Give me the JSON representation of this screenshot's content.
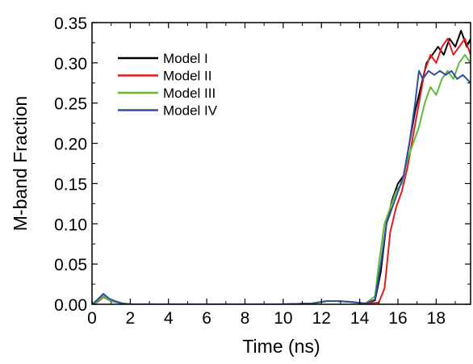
{
  "chart_data": {
    "type": "line",
    "title": "",
    "xlabel": "Time (ns)",
    "ylabel": "M-band Fraction",
    "xlim": [
      0,
      19.8
    ],
    "ylim": [
      0,
      0.35
    ],
    "grid": false,
    "legend_position": "top-left",
    "x_ticks": [
      0,
      2,
      4,
      6,
      8,
      10,
      12,
      14,
      16,
      18
    ],
    "y_ticks": [
      "0.00",
      "0.05",
      "0.10",
      "0.15",
      "0.20",
      "0.25",
      "0.30",
      "0.35"
    ],
    "series": [
      {
        "name": "Model I",
        "color": "#000000",
        "points": [
          [
            0,
            0
          ],
          [
            0.3,
            0.004
          ],
          [
            0.6,
            0.01
          ],
          [
            0.9,
            0.005
          ],
          [
            1.2,
            0.003
          ],
          [
            1.6,
            0.001
          ],
          [
            2,
            0
          ],
          [
            6,
            0
          ],
          [
            10,
            0
          ],
          [
            11.5,
            0.001
          ],
          [
            12.3,
            0.004
          ],
          [
            12.8,
            0.004
          ],
          [
            13.5,
            0.003
          ],
          [
            14.3,
            0.001
          ],
          [
            14.8,
            0.005
          ],
          [
            15.1,
            0.04
          ],
          [
            15.4,
            0.1
          ],
          [
            15.7,
            0.13
          ],
          [
            16.0,
            0.15
          ],
          [
            16.3,
            0.16
          ],
          [
            16.6,
            0.2
          ],
          [
            16.9,
            0.24
          ],
          [
            17.2,
            0.27
          ],
          [
            17.5,
            0.3
          ],
          [
            17.8,
            0.31
          ],
          [
            18.1,
            0.32
          ],
          [
            18.4,
            0.31
          ],
          [
            18.7,
            0.33
          ],
          [
            19.0,
            0.32
          ],
          [
            19.3,
            0.34
          ],
          [
            19.6,
            0.32
          ],
          [
            19.8,
            0.33
          ]
        ]
      },
      {
        "name": "Model II",
        "color": "#e41a1c",
        "points": [
          [
            0,
            0
          ],
          [
            0.3,
            0.003
          ],
          [
            0.6,
            0.009
          ],
          [
            0.9,
            0.005
          ],
          [
            1.2,
            0.003
          ],
          [
            1.6,
            0.001
          ],
          [
            2,
            0
          ],
          [
            6,
            0
          ],
          [
            10,
            0
          ],
          [
            11.5,
            0.001
          ],
          [
            12.3,
            0.004
          ],
          [
            12.8,
            0.004
          ],
          [
            13.5,
            0.003
          ],
          [
            14.3,
            0.001
          ],
          [
            15.0,
            0.002
          ],
          [
            15.3,
            0.02
          ],
          [
            15.6,
            0.09
          ],
          [
            15.9,
            0.12
          ],
          [
            16.2,
            0.14
          ],
          [
            16.5,
            0.17
          ],
          [
            16.8,
            0.21
          ],
          [
            17.1,
            0.25
          ],
          [
            17.4,
            0.29
          ],
          [
            17.7,
            0.31
          ],
          [
            18.0,
            0.3
          ],
          [
            18.3,
            0.32
          ],
          [
            18.6,
            0.33
          ],
          [
            18.9,
            0.31
          ],
          [
            19.2,
            0.32
          ],
          [
            19.5,
            0.33
          ],
          [
            19.8,
            0.31
          ]
        ]
      },
      {
        "name": "Model III",
        "color": "#5dbb36",
        "points": [
          [
            0,
            0
          ],
          [
            0.3,
            0.004
          ],
          [
            0.6,
            0.01
          ],
          [
            0.9,
            0.005
          ],
          [
            1.2,
            0.003
          ],
          [
            1.6,
            0.001
          ],
          [
            2,
            0
          ],
          [
            6,
            0
          ],
          [
            10,
            0
          ],
          [
            11.5,
            0.001
          ],
          [
            12.3,
            0.004
          ],
          [
            12.8,
            0.004
          ],
          [
            13.5,
            0.003
          ],
          [
            14.3,
            0.001
          ],
          [
            14.8,
            0.01
          ],
          [
            15.0,
            0.05
          ],
          [
            15.3,
            0.1
          ],
          [
            15.6,
            0.12
          ],
          [
            15.9,
            0.14
          ],
          [
            16.2,
            0.15
          ],
          [
            16.5,
            0.18
          ],
          [
            16.8,
            0.2
          ],
          [
            17.1,
            0.22
          ],
          [
            17.4,
            0.25
          ],
          [
            17.7,
            0.27
          ],
          [
            18.0,
            0.26
          ],
          [
            18.3,
            0.28
          ],
          [
            18.6,
            0.29
          ],
          [
            18.9,
            0.28
          ],
          [
            19.2,
            0.3
          ],
          [
            19.5,
            0.31
          ],
          [
            19.8,
            0.3
          ]
        ]
      },
      {
        "name": "Model IV",
        "color": "#2e4fa3",
        "points": [
          [
            0,
            0
          ],
          [
            0.3,
            0.006
          ],
          [
            0.6,
            0.013
          ],
          [
            0.9,
            0.007
          ],
          [
            1.2,
            0.004
          ],
          [
            1.6,
            0.001
          ],
          [
            2,
            0
          ],
          [
            6,
            0
          ],
          [
            10,
            0
          ],
          [
            11.5,
            0.001
          ],
          [
            12.3,
            0.004
          ],
          [
            12.8,
            0.004
          ],
          [
            13.5,
            0.003
          ],
          [
            14.3,
            0.001
          ],
          [
            14.8,
            0.006
          ],
          [
            15.1,
            0.05
          ],
          [
            15.4,
            0.1
          ],
          [
            15.7,
            0.12
          ],
          [
            16.0,
            0.14
          ],
          [
            16.3,
            0.16
          ],
          [
            16.6,
            0.2
          ],
          [
            16.9,
            0.25
          ],
          [
            17.1,
            0.29
          ],
          [
            17.3,
            0.28
          ],
          [
            17.6,
            0.29
          ],
          [
            17.9,
            0.285
          ],
          [
            18.2,
            0.29
          ],
          [
            18.5,
            0.285
          ],
          [
            18.8,
            0.29
          ],
          [
            19.1,
            0.28
          ],
          [
            19.4,
            0.285
          ],
          [
            19.8,
            0.275
          ]
        ]
      }
    ]
  }
}
